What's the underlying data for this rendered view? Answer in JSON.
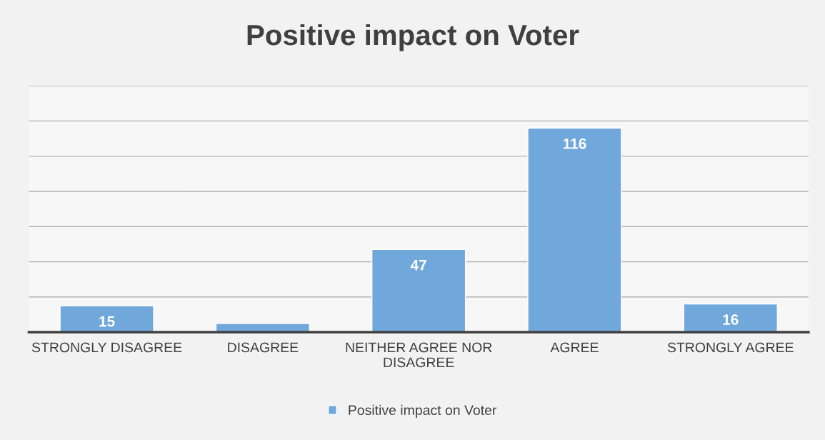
{
  "chart_data": {
    "type": "bar",
    "title": "Positive impact on Voter",
    "categories": [
      "STRONGLY DISAGREE",
      "DISAGREE",
      "NEITHER AGREE NOR\nDISAGREE",
      "AGREE",
      "STRONGLY AGREE"
    ],
    "series": [
      {
        "name": "Positive impact on Voter",
        "color": "#71a8db",
        "values": [
          15,
          5,
          47,
          116,
          16
        ],
        "value_labels": [
          "15",
          null,
          "47",
          "116",
          "16"
        ]
      }
    ],
    "ylim": [
      0,
      140
    ],
    "yticks": [
      {
        "value": 0,
        "label": null
      },
      {
        "value": 20,
        "label": null
      },
      {
        "value": 40,
        "label": null
      },
      {
        "value": 60,
        "label": null
      },
      {
        "value": 80,
        "label": null
      },
      {
        "value": 100,
        "label": null
      },
      {
        "value": 120,
        "label": null
      },
      {
        "value": 140,
        "label": null
      }
    ],
    "tick_labels": "x",
    "grid": "y",
    "legend": "bottom"
  }
}
